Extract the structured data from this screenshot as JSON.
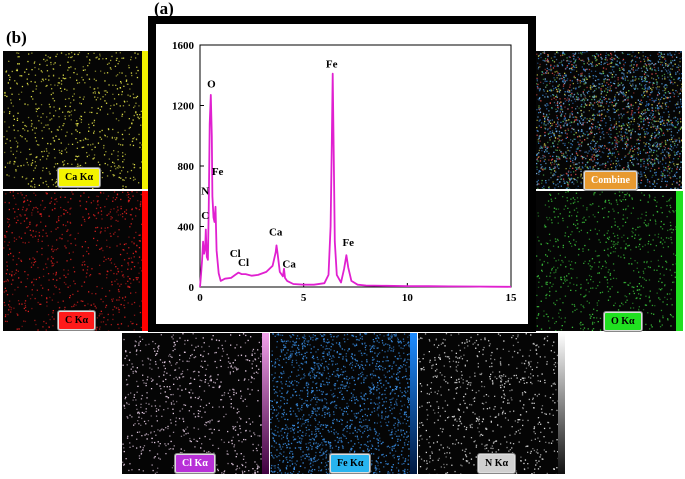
{
  "labels": {
    "a": "(a)",
    "b": "(b)"
  },
  "maps": [
    {
      "id": "ca",
      "label": "Ca Kα",
      "dot_color": "#e8e84a",
      "bar_color": "#f2f200",
      "badge_color": "#f4f400",
      "badge_text_color": "#000000"
    },
    {
      "id": "c",
      "label": "C Kα",
      "dot_color": "#e02020",
      "bar_color": "#ff0000",
      "badge_color": "#ff1a1a",
      "badge_text_color": "#000000"
    },
    {
      "id": "cl",
      "label": "Cl Kα",
      "dot_color": "#f2d8f0",
      "bar_color": "#e080d8",
      "badge_color": "#b830d8",
      "badge_text_color": "#ffffff"
    },
    {
      "id": "fe",
      "label": "Fe Kα",
      "dot_color": "#3a90e8",
      "bar_color": "#1e8cff",
      "badge_color": "#28b4f0",
      "badge_text_color": "#000000"
    },
    {
      "id": "n",
      "label": "N Kα",
      "dot_color": "#e6e6e6",
      "bar_color": "#ffffff",
      "badge_color": "#d0d0d0",
      "badge_text_color": "#000000"
    },
    {
      "id": "combine",
      "label": "Combine",
      "dot_color": "#5fa8e0",
      "bar_color": "",
      "badge_color": "#e89a30",
      "badge_text_color": "#ffffff"
    },
    {
      "id": "o",
      "label": "O Kα",
      "dot_color": "#3cc83c",
      "bar_color": "#20e020",
      "badge_color": "#20e020",
      "badge_text_color": "#000000"
    }
  ],
  "chart_data": {
    "type": "line",
    "xlim": [
      0,
      15
    ],
    "ylim": [
      0,
      1600
    ],
    "xticks": [
      0,
      5,
      10,
      15
    ],
    "yticks": [
      0,
      400,
      800,
      1200,
      1600
    ],
    "line_color": "#e020d0",
    "x": [
      0,
      0.05,
      0.1,
      0.15,
      0.2,
      0.25,
      0.28,
      0.3,
      0.33,
      0.38,
      0.42,
      0.47,
      0.52,
      0.57,
      0.6,
      0.65,
      0.7,
      0.75,
      0.8,
      0.9,
      1.0,
      1.2,
      1.5,
      1.7,
      1.85,
      2.0,
      2.2,
      2.5,
      2.8,
      3.2,
      3.5,
      3.65,
      3.69,
      3.75,
      3.85,
      4.0,
      4.05,
      4.1,
      4.2,
      4.5,
      5.0,
      5.5,
      6.0,
      6.2,
      6.3,
      6.35,
      6.4,
      6.45,
      6.5,
      6.6,
      6.8,
      6.95,
      7.06,
      7.15,
      7.3,
      7.6,
      8.0,
      9.0,
      10.0,
      11.0,
      12.0,
      13.0,
      14.0,
      15.0
    ],
    "y": [
      0,
      80,
      180,
      300,
      220,
      260,
      380,
      300,
      200,
      180,
      500,
      1080,
      1270,
      1000,
      600,
      460,
      430,
      530,
      240,
      90,
      40,
      55,
      60,
      80,
      95,
      85,
      85,
      75,
      80,
      100,
      140,
      230,
      275,
      210,
      100,
      70,
      120,
      60,
      40,
      20,
      15,
      15,
      25,
      80,
      400,
      900,
      1410,
      900,
      300,
      80,
      30,
      120,
      210,
      130,
      40,
      15,
      10,
      8,
      6,
      5,
      4,
      3,
      2,
      1
    ],
    "annotations": [
      {
        "text": "O",
        "x": 0.55,
        "y": 1320
      },
      {
        "text": "N",
        "x": 0.25,
        "y": 610
      },
      {
        "text": "Fe",
        "x": 0.85,
        "y": 740
      },
      {
        "text": "C",
        "x": 0.25,
        "y": 450
      },
      {
        "text": "Cl",
        "x": 1.7,
        "y": 200
      },
      {
        "text": "Cl",
        "x": 2.1,
        "y": 140
      },
      {
        "text": "Ca",
        "x": 3.65,
        "y": 340
      },
      {
        "text": "Ca",
        "x": 4.3,
        "y": 130
      },
      {
        "text": "Fe",
        "x": 6.35,
        "y": 1450
      },
      {
        "text": "Fe",
        "x": 7.15,
        "y": 270
      }
    ]
  }
}
